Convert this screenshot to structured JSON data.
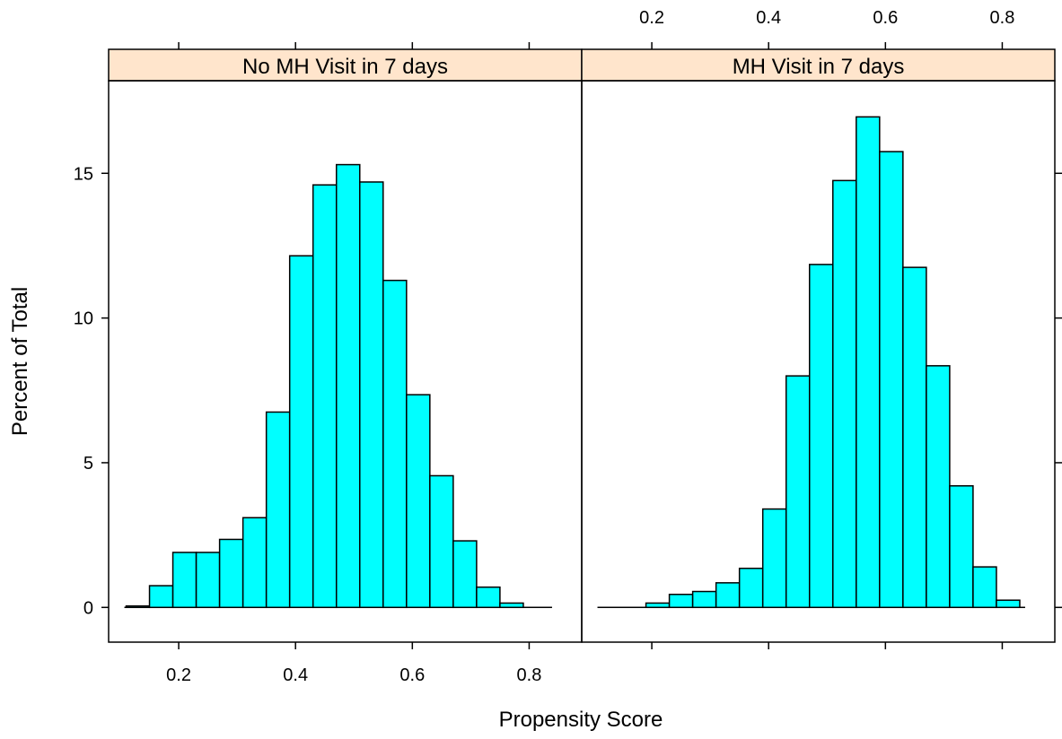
{
  "chart_data": {
    "type": "bar",
    "xlabel": "Propensity Score",
    "ylabel": "Percent of Total",
    "xlim": [
      0.08,
      0.89
    ],
    "ylim": [
      -1.2,
      18.2
    ],
    "x_ticks": [
      0.2,
      0.4,
      0.6,
      0.8
    ],
    "y_ticks": [
      0,
      5,
      10,
      15
    ],
    "bin_edges": [
      0.11,
      0.15,
      0.19,
      0.23,
      0.27,
      0.31,
      0.35,
      0.39,
      0.43,
      0.47,
      0.51,
      0.55,
      0.59,
      0.63,
      0.67,
      0.71,
      0.75,
      0.79,
      0.83
    ],
    "colors": {
      "bar_fill": "#00ffff",
      "strip_fill": "#ffe5cc",
      "frame": "#000000"
    },
    "panels": [
      {
        "name": "No MH Visit in 7 days",
        "values": [
          0.05,
          0.75,
          1.9,
          1.9,
          2.35,
          3.1,
          6.75,
          12.15,
          14.6,
          15.3,
          14.7,
          11.3,
          7.35,
          4.55,
          2.3,
          0.7,
          0.15,
          0.0
        ]
      },
      {
        "name": "MH Visit in 7 days",
        "values": [
          0.0,
          0.0,
          0.15,
          0.45,
          0.55,
          0.85,
          1.35,
          3.4,
          8.0,
          11.85,
          14.75,
          16.95,
          15.75,
          11.75,
          8.35,
          4.2,
          1.4,
          0.25
        ]
      }
    ]
  }
}
